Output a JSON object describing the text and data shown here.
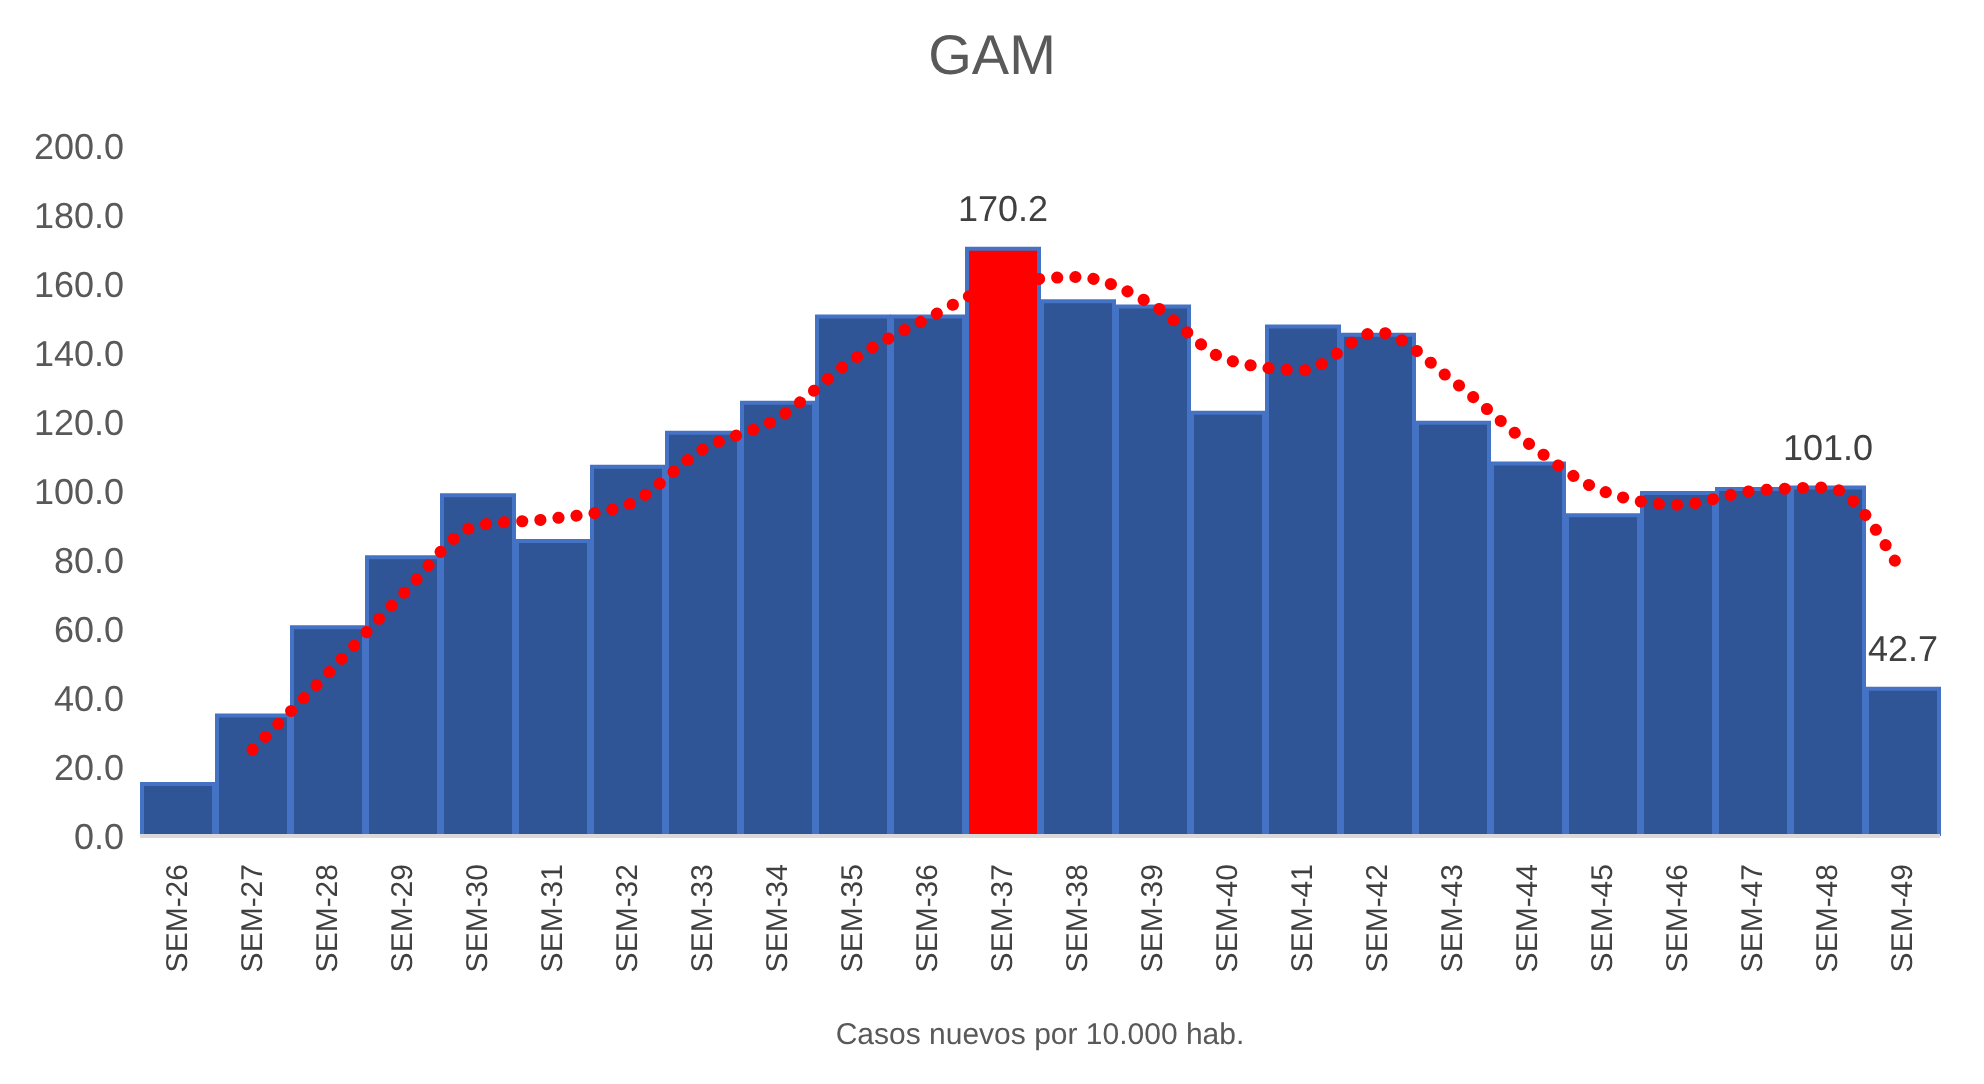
{
  "chart_data": {
    "type": "bar",
    "title": "GAM",
    "xlabel": "Casos nuevos por 10.000 hab.",
    "categories": [
      "SEM-26",
      "SEM-27",
      "SEM-28",
      "SEM-29",
      "SEM-30",
      "SEM-31",
      "SEM-32",
      "SEM-33",
      "SEM-34",
      "SEM-35",
      "SEM-36",
      "SEM-37",
      "SEM-38",
      "SEM-39",
      "SEM-40",
      "SEM-41",
      "SEM-42",
      "SEM-43",
      "SEM-44",
      "SEM-45",
      "SEM-46",
      "SEM-47",
      "SEM-48",
      "SEM-49"
    ],
    "series": [
      {
        "values": [
          15.1,
          34.9,
          60.5,
          80.8,
          98.8,
          85.5,
          107,
          116.9,
          125.6,
          150.6,
          150.6,
          170.2,
          155,
          153.5,
          122.7,
          147.7,
          145.3,
          119.8,
          108,
          93,
          99.4,
          100.6,
          101.0,
          42.7
        ],
        "color": "#2f5597",
        "colors": [
          "#2f5597",
          "#2f5597",
          "#2f5597",
          "#2f5597",
          "#2f5597",
          "#2f5597",
          "#2f5597",
          "#2f5597",
          "#2f5597",
          "#2f5597",
          "#2f5597",
          "#ff0000",
          "#2f5597",
          "#2f5597",
          "#2f5597",
          "#2f5597",
          "#2f5597",
          "#2f5597",
          "#2f5597",
          "#2f5597",
          "#2f5597",
          "#2f5597",
          "#2f5597",
          "#2f5597"
        ],
        "value_labels": [
          null,
          null,
          null,
          null,
          null,
          null,
          null,
          null,
          null,
          null,
          null,
          "170.2",
          null,
          null,
          null,
          null,
          null,
          null,
          null,
          null,
          null,
          null,
          "101.0",
          "42.7"
        ]
      },
      {
        "type": "line",
        "color": "#ff0000",
        "line_style": "dotted",
        "marker": "none",
        "values": [
          null,
          25,
          47,
          70,
          90,
          92,
          96,
          112,
          121,
          138,
          150,
          160,
          162,
          154,
          138,
          135,
          146,
          132,
          114,
          100,
          96,
          100,
          101,
          76
        ]
      }
    ],
    "ylim": [
      0,
      200
    ],
    "yticks": [
      {
        "value": 0,
        "label": "0.0"
      },
      {
        "value": 20,
        "label": "20.0"
      },
      {
        "value": 40,
        "label": "40.0"
      },
      {
        "value": 60,
        "label": "60.0"
      },
      {
        "value": 80,
        "label": "80.0"
      },
      {
        "value": 100,
        "label": "100.0"
      },
      {
        "value": 120,
        "label": "120.0"
      },
      {
        "value": 140,
        "label": "140.0"
      },
      {
        "value": 160,
        "label": "160.0"
      },
      {
        "value": 180,
        "label": "180.0"
      },
      {
        "value": 200,
        "label": "200.0"
      }
    ],
    "grid": false,
    "legend": false
  }
}
